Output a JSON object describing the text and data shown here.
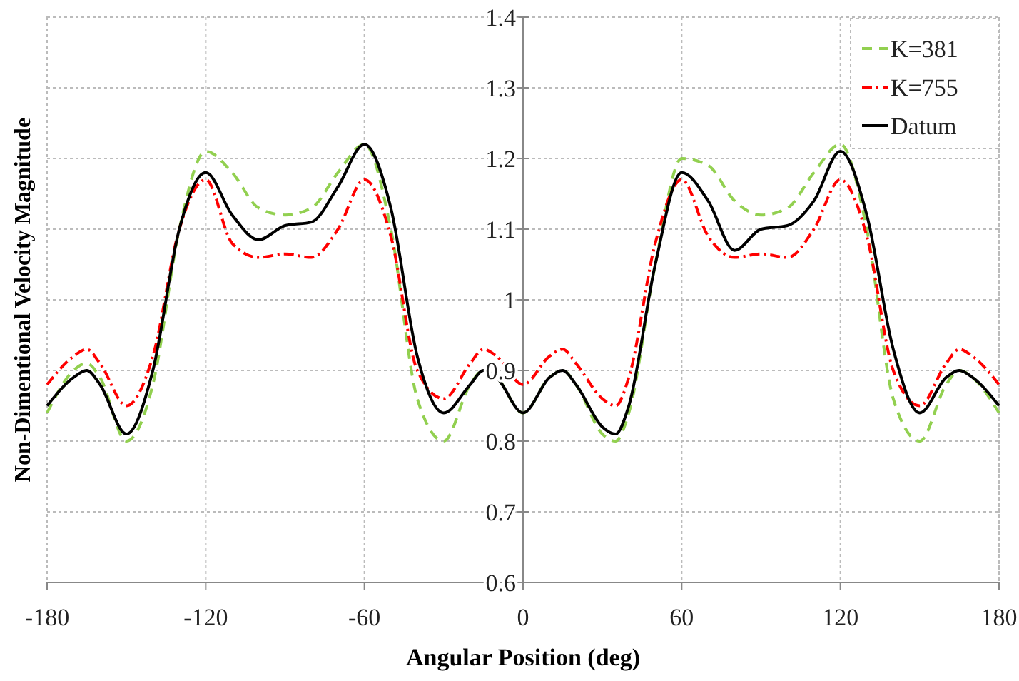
{
  "chart_data": {
    "type": "line",
    "xlabel": "Angular Position (deg)",
    "ylabel": "Non-Dimentional Velocity Magnitude",
    "x": [
      -180,
      -170,
      -165,
      -160,
      -150,
      -140,
      -130,
      -120,
      -110,
      -100,
      -90,
      -80,
      -70,
      -60,
      -50,
      -40,
      -30,
      -20,
      -15,
      -10,
      0,
      10,
      15,
      20,
      30,
      35,
      40,
      50,
      60,
      70,
      80,
      90,
      100,
      110,
      120,
      130,
      140,
      150,
      160,
      165,
      170,
      180
    ],
    "series": [
      {
        "name": "K=381",
        "color": "#92d050",
        "line_style": "dashed",
        "values": [
          0.84,
          0.9,
          0.91,
          0.89,
          0.8,
          0.88,
          1.1,
          1.21,
          1.18,
          1.13,
          1.12,
          1.13,
          1.18,
          1.22,
          1.1,
          0.86,
          0.8,
          0.88,
          0.9,
          0.89,
          0.84,
          0.89,
          0.9,
          0.88,
          0.81,
          0.8,
          0.84,
          1.05,
          1.2,
          1.19,
          1.14,
          1.12,
          1.13,
          1.18,
          1.22,
          1.1,
          0.86,
          0.8,
          0.88,
          0.9,
          0.89,
          0.84
        ]
      },
      {
        "name": "K=755",
        "color": "#ff0000",
        "line_style": "dotted",
        "values": [
          0.88,
          0.92,
          0.93,
          0.91,
          0.85,
          0.92,
          1.1,
          1.17,
          1.08,
          1.06,
          1.065,
          1.06,
          1.1,
          1.17,
          1.09,
          0.9,
          0.86,
          0.91,
          0.93,
          0.92,
          0.88,
          0.92,
          0.93,
          0.91,
          0.86,
          0.85,
          0.89,
          1.08,
          1.17,
          1.09,
          1.06,
          1.065,
          1.06,
          1.1,
          1.17,
          1.09,
          0.9,
          0.85,
          0.91,
          0.93,
          0.92,
          0.88
        ]
      },
      {
        "name": "Datum",
        "color": "#000000",
        "line_style": "solid",
        "values": [
          0.85,
          0.89,
          0.9,
          0.88,
          0.81,
          0.9,
          1.1,
          1.18,
          1.12,
          1.085,
          1.105,
          1.11,
          1.16,
          1.22,
          1.13,
          0.92,
          0.84,
          0.88,
          0.9,
          0.89,
          0.84,
          0.89,
          0.9,
          0.88,
          0.82,
          0.81,
          0.85,
          1.05,
          1.18,
          1.14,
          1.07,
          1.1,
          1.105,
          1.14,
          1.21,
          1.12,
          0.93,
          0.84,
          0.89,
          0.9,
          0.89,
          0.85
        ]
      }
    ],
    "xlim": [
      -180,
      180
    ],
    "xticks": [
      -180,
      -120,
      -60,
      0,
      60,
      120,
      180
    ],
    "ylim": [
      0.6,
      1.4
    ],
    "yticks": [
      0.6,
      0.7,
      0.8,
      0.9,
      1,
      1.1,
      1.2,
      1.3,
      1.4
    ],
    "grid": true,
    "legend": "top right",
    "marker": "none"
  }
}
